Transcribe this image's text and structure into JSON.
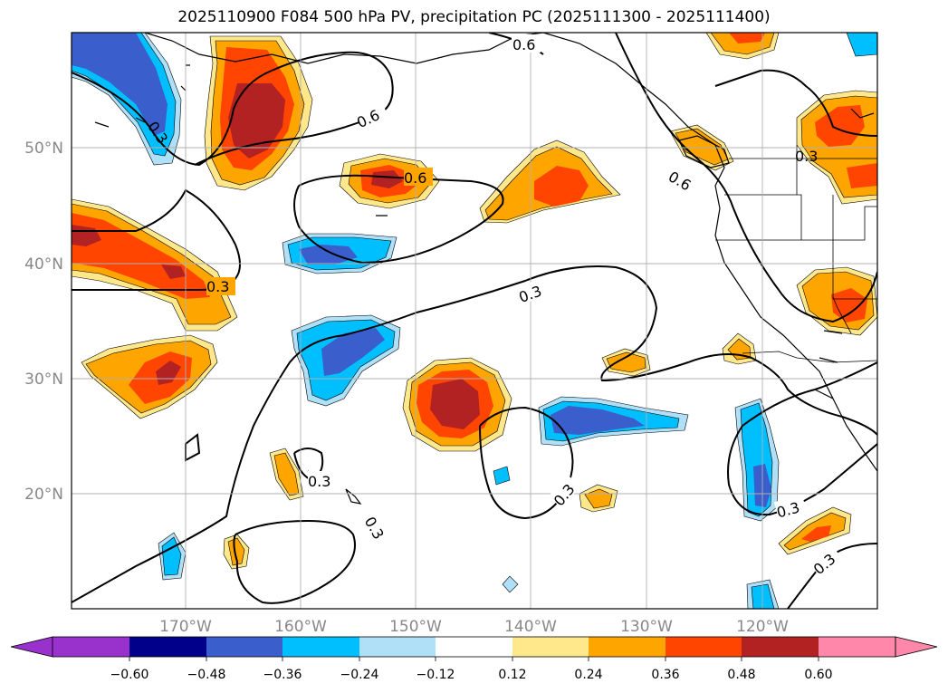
{
  "title": "2025110900 F084 500 hPa PV, precipitation PC (2025111300 - 2025111400)",
  "map": {
    "lon_labels": [
      "170°W",
      "160°W",
      "150°W",
      "140°W",
      "130°W",
      "120°W"
    ],
    "lat_labels": [
      "50°N",
      "40°N",
      "30°N",
      "20°N"
    ],
    "contour_labels": [
      "0.6",
      "0.6",
      "0.6",
      "0.6",
      "0.3",
      "0.3",
      "0.3",
      "0.3",
      "0.3",
      "0.3",
      "0.3",
      "0.3",
      "0.3"
    ]
  },
  "colorbar": {
    "ticks": [
      "−0.60",
      "−0.48",
      "−0.36",
      "−0.24",
      "−0.12",
      "0.12",
      "0.24",
      "0.36",
      "0.48",
      "0.60"
    ],
    "colors": [
      "#9932cc",
      "#00008b",
      "#3a5fcd",
      "#00bfff",
      "#b0e0f8",
      "#ffffff",
      "#ffe88c",
      "#ffa500",
      "#ff4500",
      "#b22222",
      "#ff88aa"
    ]
  },
  "palette": {
    "light_yellow": "#ffe88c",
    "orange": "#ffa500",
    "red_orange": "#ff4500",
    "dark_red": "#b22222",
    "light_blue": "#b0e0f8",
    "cyan": "#00bfff",
    "royal_blue": "#3a5fcd"
  }
}
